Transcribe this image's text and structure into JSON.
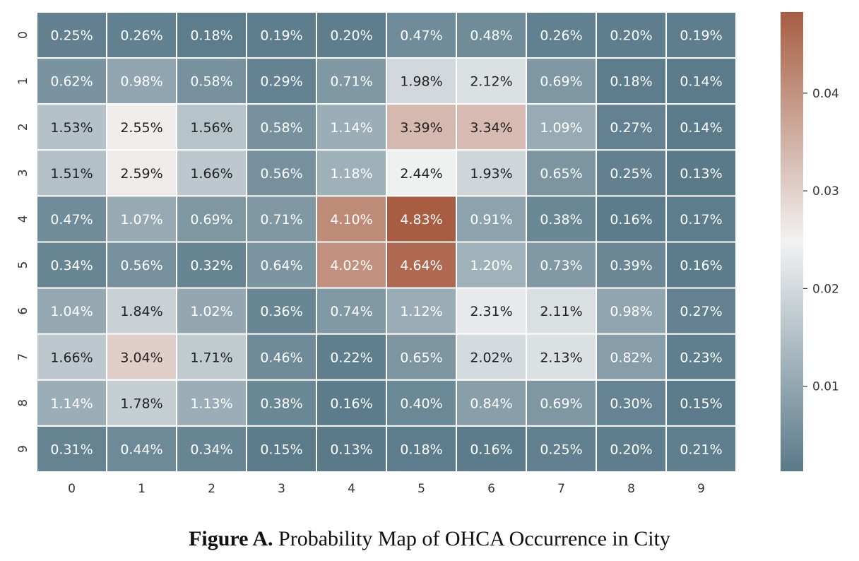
{
  "chart_data": {
    "type": "heatmap",
    "x_categories": [
      "0",
      "1",
      "2",
      "3",
      "4",
      "5",
      "6",
      "7",
      "8",
      "9"
    ],
    "y_categories": [
      "0",
      "1",
      "2",
      "3",
      "4",
      "5",
      "6",
      "7",
      "8",
      "9"
    ],
    "values": [
      [
        0.0025,
        0.0026,
        0.0018,
        0.0019,
        0.002,
        0.0047,
        0.0048,
        0.0026,
        0.002,
        0.0019
      ],
      [
        0.0062,
        0.0098,
        0.0058,
        0.0029,
        0.0071,
        0.0198,
        0.0212,
        0.0069,
        0.0018,
        0.0014
      ],
      [
        0.0153,
        0.0255,
        0.0156,
        0.0058,
        0.0114,
        0.0339,
        0.0334,
        0.0109,
        0.0027,
        0.0014
      ],
      [
        0.0151,
        0.0259,
        0.0166,
        0.0056,
        0.0118,
        0.0244,
        0.0193,
        0.0065,
        0.0025,
        0.0013
      ],
      [
        0.0047,
        0.0107,
        0.0069,
        0.0071,
        0.041,
        0.0483,
        0.0091,
        0.0038,
        0.0016,
        0.0017
      ],
      [
        0.0034,
        0.0056,
        0.0032,
        0.0064,
        0.0402,
        0.0464,
        0.012,
        0.0073,
        0.0039,
        0.0016
      ],
      [
        0.0104,
        0.0184,
        0.0102,
        0.0036,
        0.0074,
        0.0112,
        0.0231,
        0.0211,
        0.0098,
        0.0027
      ],
      [
        0.0166,
        0.0304,
        0.0171,
        0.0046,
        0.0022,
        0.0065,
        0.0202,
        0.0213,
        0.0082,
        0.0023
      ],
      [
        0.0114,
        0.0178,
        0.0113,
        0.0038,
        0.0016,
        0.004,
        0.0084,
        0.0069,
        0.003,
        0.0015
      ],
      [
        0.0031,
        0.0044,
        0.0034,
        0.0015,
        0.0013,
        0.0018,
        0.0016,
        0.0025,
        0.002,
        0.0021
      ]
    ],
    "labels": [
      [
        "0.25%",
        "0.26%",
        "0.18%",
        "0.19%",
        "0.20%",
        "0.47%",
        "0.48%",
        "0.26%",
        "0.20%",
        "0.19%"
      ],
      [
        "0.62%",
        "0.98%",
        "0.58%",
        "0.29%",
        "0.71%",
        "1.98%",
        "2.12%",
        "0.69%",
        "0.18%",
        "0.14%"
      ],
      [
        "1.53%",
        "2.55%",
        "1.56%",
        "0.58%",
        "1.14%",
        "3.39%",
        "3.34%",
        "1.09%",
        "0.27%",
        "0.14%"
      ],
      [
        "1.51%",
        "2.59%",
        "1.66%",
        "0.56%",
        "1.18%",
        "2.44%",
        "1.93%",
        "0.65%",
        "0.25%",
        "0.13%"
      ],
      [
        "0.47%",
        "1.07%",
        "0.69%",
        "0.71%",
        "4.10%",
        "4.83%",
        "0.91%",
        "0.38%",
        "0.16%",
        "0.17%"
      ],
      [
        "0.34%",
        "0.56%",
        "0.32%",
        "0.64%",
        "4.02%",
        "4.64%",
        "1.20%",
        "0.73%",
        "0.39%",
        "0.16%"
      ],
      [
        "1.04%",
        "1.84%",
        "1.02%",
        "0.36%",
        "0.74%",
        "1.12%",
        "2.31%",
        "2.11%",
        "0.98%",
        "0.27%"
      ],
      [
        "1.66%",
        "3.04%",
        "1.71%",
        "0.46%",
        "0.22%",
        "0.65%",
        "2.02%",
        "2.13%",
        "0.82%",
        "0.23%"
      ],
      [
        "1.14%",
        "1.78%",
        "1.13%",
        "0.38%",
        "0.16%",
        "0.40%",
        "0.84%",
        "0.69%",
        "0.30%",
        "0.15%"
      ],
      [
        "0.31%",
        "0.44%",
        "0.34%",
        "0.15%",
        "0.13%",
        "0.18%",
        "0.16%",
        "0.25%",
        "0.20%",
        "0.21%"
      ]
    ],
    "colorbar": {
      "range": [
        0.0013,
        0.0483
      ],
      "ticks": [
        0.01,
        0.02,
        0.03,
        0.04
      ],
      "tick_labels": [
        "0.01",
        "0.02",
        "0.03",
        "0.04"
      ],
      "colors": {
        "low": "#5a7a8a",
        "mid": "#f2f2f2",
        "high": "#a85d42"
      }
    },
    "grid_color": "#ffffff"
  },
  "caption": {
    "prefix": "Figure A.",
    "text": " Probability Map of OHCA Occurrence in City"
  }
}
